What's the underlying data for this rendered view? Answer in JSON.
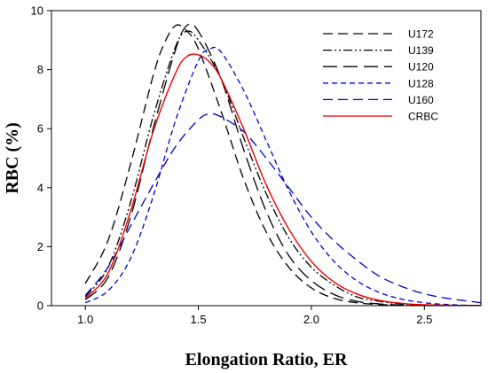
{
  "chart_data": {
    "type": "line",
    "xlabel": "Elongation Ratio, ER",
    "ylabel": "RBC (%)",
    "xlim": [
      0.85,
      2.75
    ],
    "ylim": [
      0,
      10
    ],
    "x_ticks": [
      "1.0",
      "1.5",
      "2.0",
      "2.5"
    ],
    "x_tick_values": [
      1.0,
      1.5,
      2.0,
      2.5
    ],
    "y_ticks": [
      "0",
      "2",
      "4",
      "6",
      "8",
      "10"
    ],
    "y_tick_values": [
      0,
      2,
      4,
      6,
      8,
      10
    ],
    "legend_position": "top-right",
    "grid": false,
    "series": [
      {
        "name": "U172",
        "color": "#000000",
        "dash": "long-dash",
        "x": [
          1.0,
          1.1,
          1.2,
          1.3,
          1.35,
          1.4,
          1.45,
          1.5,
          1.6,
          1.7,
          1.8,
          1.9,
          2.0,
          2.1,
          2.2,
          2.3,
          2.4,
          2.5,
          2.75
        ],
        "y": [
          0.75,
          2.2,
          4.8,
          7.8,
          8.9,
          9.5,
          9.3,
          8.7,
          6.6,
          4.3,
          2.5,
          1.3,
          0.6,
          0.25,
          0.1,
          0.04,
          0.01,
          0.0,
          0.0
        ]
      },
      {
        "name": "U139",
        "color": "#000000",
        "dash": "dash-dot-dot",
        "x": [
          1.0,
          1.1,
          1.2,
          1.3,
          1.4,
          1.45,
          1.5,
          1.6,
          1.7,
          1.8,
          1.9,
          2.0,
          2.1,
          2.2,
          2.3,
          2.4,
          2.5,
          2.75
        ],
        "y": [
          0.3,
          1.3,
          3.5,
          6.4,
          8.8,
          9.3,
          9.0,
          7.7,
          5.7,
          3.8,
          2.3,
          1.3,
          0.7,
          0.3,
          0.15,
          0.06,
          0.02,
          0.0
        ]
      },
      {
        "name": "U120",
        "color": "#000000",
        "dash": "medium-dash",
        "x": [
          1.0,
          1.1,
          1.2,
          1.3,
          1.4,
          1.45,
          1.5,
          1.6,
          1.7,
          1.8,
          1.9,
          2.0,
          2.1,
          2.2,
          2.3,
          2.4,
          2.5,
          2.75
        ],
        "y": [
          0.2,
          0.95,
          3.0,
          6.0,
          8.7,
          9.5,
          9.3,
          7.7,
          5.3,
          3.2,
          1.7,
          0.85,
          0.38,
          0.15,
          0.06,
          0.02,
          0.01,
          0.0
        ]
      },
      {
        "name": "U128",
        "color": "#0000cc",
        "dash": "short-dash",
        "x": [
          1.0,
          1.1,
          1.2,
          1.3,
          1.4,
          1.5,
          1.55,
          1.6,
          1.7,
          1.8,
          1.9,
          2.0,
          2.1,
          2.2,
          2.3,
          2.4,
          2.5,
          2.6,
          2.75
        ],
        "y": [
          0.1,
          0.5,
          1.6,
          3.7,
          6.3,
          8.3,
          8.7,
          8.6,
          7.3,
          5.6,
          3.9,
          2.5,
          1.5,
          0.85,
          0.45,
          0.22,
          0.1,
          0.04,
          0.0
        ]
      },
      {
        "name": "U160",
        "color": "#0000cc",
        "dash": "long-dash",
        "x": [
          1.0,
          1.1,
          1.2,
          1.3,
          1.4,
          1.5,
          1.55,
          1.6,
          1.7,
          1.8,
          1.9,
          2.0,
          2.1,
          2.2,
          2.3,
          2.4,
          2.5,
          2.6,
          2.75
        ],
        "y": [
          0.35,
          1.3,
          2.7,
          4.1,
          5.4,
          6.3,
          6.5,
          6.4,
          5.9,
          5.0,
          4.0,
          3.0,
          2.2,
          1.55,
          1.0,
          0.65,
          0.4,
          0.25,
          0.1
        ]
      },
      {
        "name": "CRBC",
        "color": "#ee0000",
        "dash": "solid",
        "x": [
          1.0,
          1.1,
          1.2,
          1.3,
          1.4,
          1.45,
          1.5,
          1.55,
          1.6,
          1.7,
          1.8,
          1.9,
          2.0,
          2.1,
          2.2,
          2.3,
          2.4,
          2.5,
          2.75
        ],
        "y": [
          0.25,
          1.1,
          3.2,
          5.9,
          7.9,
          8.45,
          8.5,
          8.25,
          7.7,
          6.0,
          4.1,
          2.6,
          1.5,
          0.8,
          0.4,
          0.18,
          0.08,
          0.03,
          0.0
        ]
      }
    ]
  }
}
